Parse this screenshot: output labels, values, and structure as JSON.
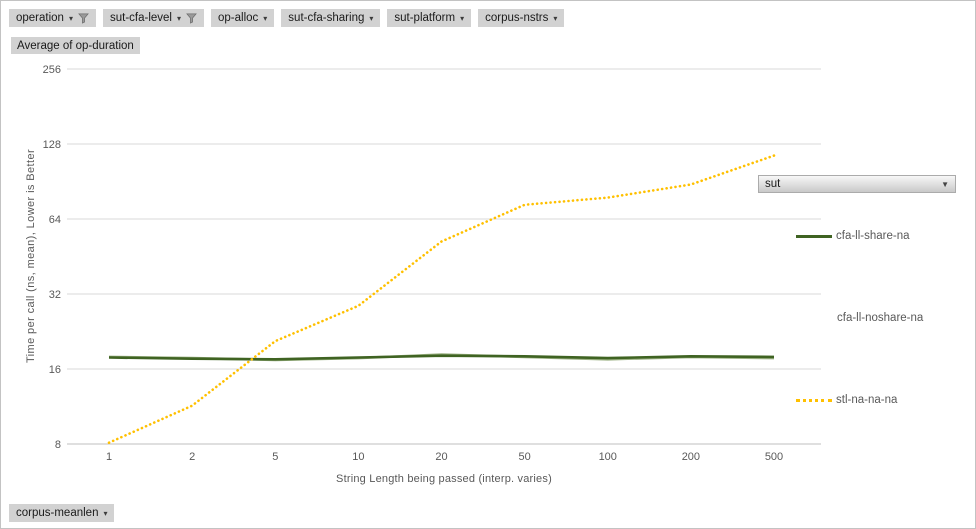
{
  "filters": {
    "row": [
      {
        "label": "operation",
        "filtered": true
      },
      {
        "label": "sut-cfa-level",
        "filtered": true
      },
      {
        "label": "op-alloc",
        "filtered": false
      },
      {
        "label": "sut-cfa-sharing",
        "filtered": false
      },
      {
        "label": "sut-platform",
        "filtered": false
      },
      {
        "label": "corpus-nstrs",
        "filtered": false
      }
    ],
    "bottom_left": {
      "label": "corpus-meanlen"
    }
  },
  "measure_button": {
    "label": "Average of op-duration"
  },
  "legend": {
    "field_button": {
      "label": "sut"
    },
    "entries": [
      {
        "label": "cfa-ll-share-na",
        "sample": "solid",
        "color": "#3f6322"
      },
      {
        "label": "cfa-ll-noshare-na",
        "sample": "none",
        "color": "#9bb183"
      },
      {
        "label": "stl-na-na-na",
        "sample": "dotted",
        "color": "#ffc000"
      }
    ]
  },
  "chart_data": {
    "type": "line",
    "title": "Average of op-duration",
    "xlabel": "String Length being passed (interp. varies)",
    "ylabel": "Time per call (ns, mean), Lower is Better",
    "categories": [
      "1",
      "2",
      "5",
      "10",
      "20",
      "50",
      "100",
      "200",
      "500"
    ],
    "y_ticks": [
      256,
      128,
      64,
      32,
      16,
      8
    ],
    "ylim": [
      8,
      256
    ],
    "y_scale": "log2",
    "grid": "horizontal",
    "legend_position": "right",
    "series": [
      {
        "name": "cfa-ll-noshare-na",
        "color": "#9bb183",
        "dash": "solid",
        "values": [
          17.9,
          17.7,
          17.4,
          17.7,
          18.3,
          17.9,
          17.5,
          17.9,
          17.7
        ]
      },
      {
        "name": "cfa-ll-share-na",
        "color": "#3f6322",
        "dash": "solid",
        "values": [
          17.8,
          17.6,
          17.5,
          17.8,
          18.1,
          18.0,
          17.7,
          18.0,
          17.9
        ]
      },
      {
        "name": "stl-na-na-na",
        "color": "#ffc000",
        "dash": "dotted",
        "values": [
          8.1,
          11.4,
          20.7,
          28.7,
          52,
          73,
          78,
          88,
          115
        ]
      }
    ]
  },
  "colors": {
    "grid_line": "#d9d9d9",
    "axis_line": "#bfbfbf",
    "tick_text": "#595959",
    "field_button_bg": "#d2d2d2",
    "series_share": "#3f6322",
    "series_noshare": "#9bb183",
    "series_stl": "#ffc000"
  }
}
